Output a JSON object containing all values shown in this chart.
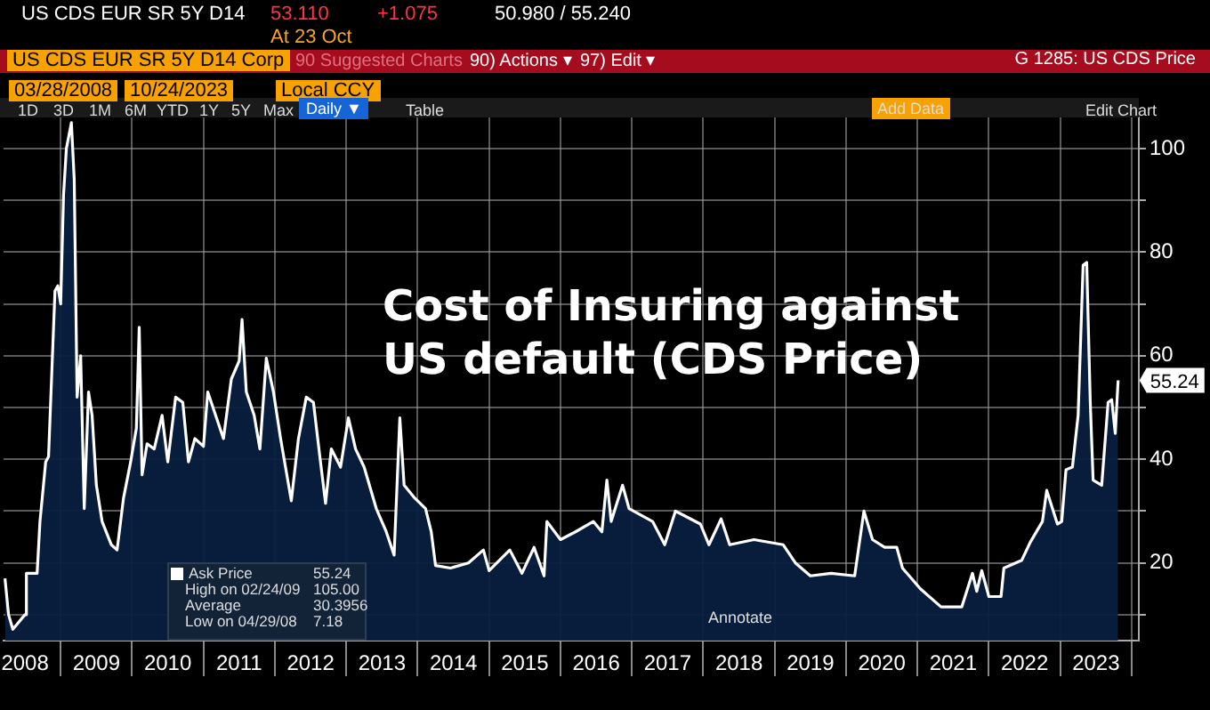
{
  "chart_data": {
    "type": "area",
    "title": "Cost of Insuring against US default (CDS Price)",
    "x": [
      2008.22,
      2008.27,
      2008.33,
      2008.5,
      2008.52,
      2008.67,
      2008.71,
      2008.79,
      2008.83,
      2008.92,
      2008.96,
      2009.0,
      2009.04,
      2009.08,
      2009.15,
      2009.19,
      2009.23,
      2009.28,
      2009.33,
      2009.39,
      2009.44,
      2009.5,
      2009.58,
      2009.71,
      2009.79,
      2009.88,
      2009.98,
      2010.06,
      2010.1,
      2010.14,
      2010.21,
      2010.31,
      2010.42,
      2010.5,
      2010.61,
      2010.71,
      2010.79,
      2010.88,
      2011.0,
      2011.06,
      2011.17,
      2011.28,
      2011.39,
      2011.5,
      2011.54,
      2011.6,
      2011.71,
      2011.79,
      2011.88,
      2011.98,
      2012.08,
      2012.23,
      2012.33,
      2012.44,
      2012.54,
      2012.63,
      2012.71,
      2012.79,
      2012.92,
      2013.03,
      2013.13,
      2013.25,
      2013.42,
      2013.56,
      2013.67,
      2013.75,
      2013.81,
      2013.96,
      2014.11,
      2014.19,
      2014.25,
      2014.46,
      2014.71,
      2014.92,
      2015.0,
      2015.29,
      2015.46,
      2015.63,
      2015.77,
      2015.81,
      2016.0,
      2016.21,
      2016.46,
      2016.58,
      2016.65,
      2016.71,
      2016.87,
      2016.96,
      2017.29,
      2017.46,
      2017.61,
      2017.96,
      2018.08,
      2018.25,
      2018.37,
      2018.71,
      2019.12,
      2019.29,
      2019.5,
      2019.79,
      2020.12,
      2020.25,
      2020.37,
      2020.54,
      2020.71,
      2020.79,
      2021.04,
      2021.33,
      2021.62,
      2021.77,
      2021.83,
      2021.9,
      2022.0,
      2022.17,
      2022.21,
      2022.46,
      2022.58,
      2022.75,
      2022.81,
      2022.96,
      2023.02,
      2023.08,
      2023.17,
      2023.25,
      2023.32,
      2023.37,
      2023.42,
      2023.46,
      2023.58,
      2023.67,
      2023.72,
      2023.77,
      2023.81
    ],
    "series": [
      {
        "name": "Ask Price",
        "color": "#ffffff",
        "values": [
          17,
          10,
          7.18,
          10,
          18,
          18,
          28,
          39.5,
          40.5,
          72.5,
          73.5,
          70,
          91,
          100,
          105,
          94,
          52,
          60,
          30.5,
          53,
          48.5,
          35,
          28,
          23.5,
          22.5,
          32.5,
          39.5,
          46,
          65.5,
          37,
          43,
          42,
          48.5,
          39.5,
          52,
          51,
          39.5,
          44,
          42.5,
          53,
          48.5,
          44,
          55.5,
          59,
          67,
          53,
          48.5,
          42,
          59.5,
          53,
          44,
          32,
          44,
          52,
          51,
          40.5,
          31.5,
          42,
          38.5,
          48,
          42,
          38.5,
          30.5,
          26,
          21.5,
          48,
          35,
          32.5,
          30.5,
          26,
          19.5,
          19,
          20,
          22.5,
          18.5,
          22.5,
          18,
          23,
          17.5,
          28,
          24.5,
          26,
          28,
          26,
          36,
          28,
          35,
          30.5,
          28,
          23.5,
          30,
          27.5,
          23.5,
          28.5,
          23.5,
          24.5,
          23.5,
          20,
          17.5,
          18,
          17.5,
          30,
          24.5,
          23,
          23,
          19,
          15,
          11.5,
          11.5,
          18,
          14.5,
          18.5,
          13.5,
          13.5,
          19,
          20.5,
          24,
          28,
          34,
          27.5,
          28,
          38,
          38.5,
          48.5,
          77.5,
          78,
          51,
          36,
          35,
          51,
          51.5,
          45,
          55.24
        ]
      }
    ],
    "xlim": [
      2008.2,
      2024.1
    ],
    "xticks": [
      {
        "value": 2008.5,
        "label": "2008"
      },
      {
        "value": 2009,
        "label": null
      },
      {
        "value": 2009.5,
        "label": "2009"
      },
      {
        "value": 2010,
        "label": null
      },
      {
        "value": 2010.5,
        "label": "2010"
      },
      {
        "value": 2011,
        "label": null
      },
      {
        "value": 2011.5,
        "label": "2011"
      },
      {
        "value": 2012,
        "label": null
      },
      {
        "value": 2012.5,
        "label": "2012"
      },
      {
        "value": 2013,
        "label": null
      },
      {
        "value": 2013.5,
        "label": "2013"
      },
      {
        "value": 2014,
        "label": null
      },
      {
        "value": 2014.5,
        "label": "2014"
      },
      {
        "value": 2015,
        "label": null
      },
      {
        "value": 2015.5,
        "label": "2015"
      },
      {
        "value": 2016,
        "label": null
      },
      {
        "value": 2016.5,
        "label": "2016"
      },
      {
        "value": 2017,
        "label": null
      },
      {
        "value": 2017.5,
        "label": "2017"
      },
      {
        "value": 2018,
        "label": null
      },
      {
        "value": 2018.5,
        "label": "2018"
      },
      {
        "value": 2019,
        "label": null
      },
      {
        "value": 2019.5,
        "label": "2019"
      },
      {
        "value": 2020,
        "label": null
      },
      {
        "value": 2020.5,
        "label": "2020"
      },
      {
        "value": 2021,
        "label": null
      },
      {
        "value": 2021.5,
        "label": "2021"
      },
      {
        "value": 2022,
        "label": null
      },
      {
        "value": 2022.5,
        "label": "2022"
      },
      {
        "value": 2023,
        "label": null
      },
      {
        "value": 2023.5,
        "label": "2023"
      },
      {
        "value": 2024,
        "label": null
      }
    ],
    "ylim": [
      5,
      106
    ],
    "yticks": [
      {
        "value": 10,
        "label": null
      },
      20,
      {
        "value": 30,
        "label": null
      },
      40,
      {
        "value": 50,
        "label": null
      },
      60,
      {
        "value": 70,
        "label": null
      },
      80,
      {
        "value": 90,
        "label": null
      },
      100
    ],
    "grid": true,
    "legend": "bottom left",
    "marker": "none",
    "annotations": [
      "US CDS EUR SR 5Y D14",
      "53.110",
      "+1.075",
      "50.980 / 55.240",
      "At 23 Oct",
      "US CDS EUR SR 5Y D14 Corp",
      "90 Suggested Charts",
      "90) Actions ▾",
      "97) Edit ▾",
      "G 1285: US CDS Price",
      "03/28/2008",
      "10/24/2023",
      "Local CCY",
      "1D",
      "3D",
      "1M",
      "6M",
      "YTD",
      "1Y",
      "5Y",
      "Max",
      "Daily ▼",
      "Table",
      "Add Data",
      "Edit Chart",
      "Annotate",
      "55.24",
      "High on 02/24/09",
      "105.00",
      "Average",
      "30.3956",
      "Low on 04/29/08",
      "7.18",
      {
        "text": "55.24",
        "x": 2023.81,
        "y": 55.24
      }
    ]
  }
}
